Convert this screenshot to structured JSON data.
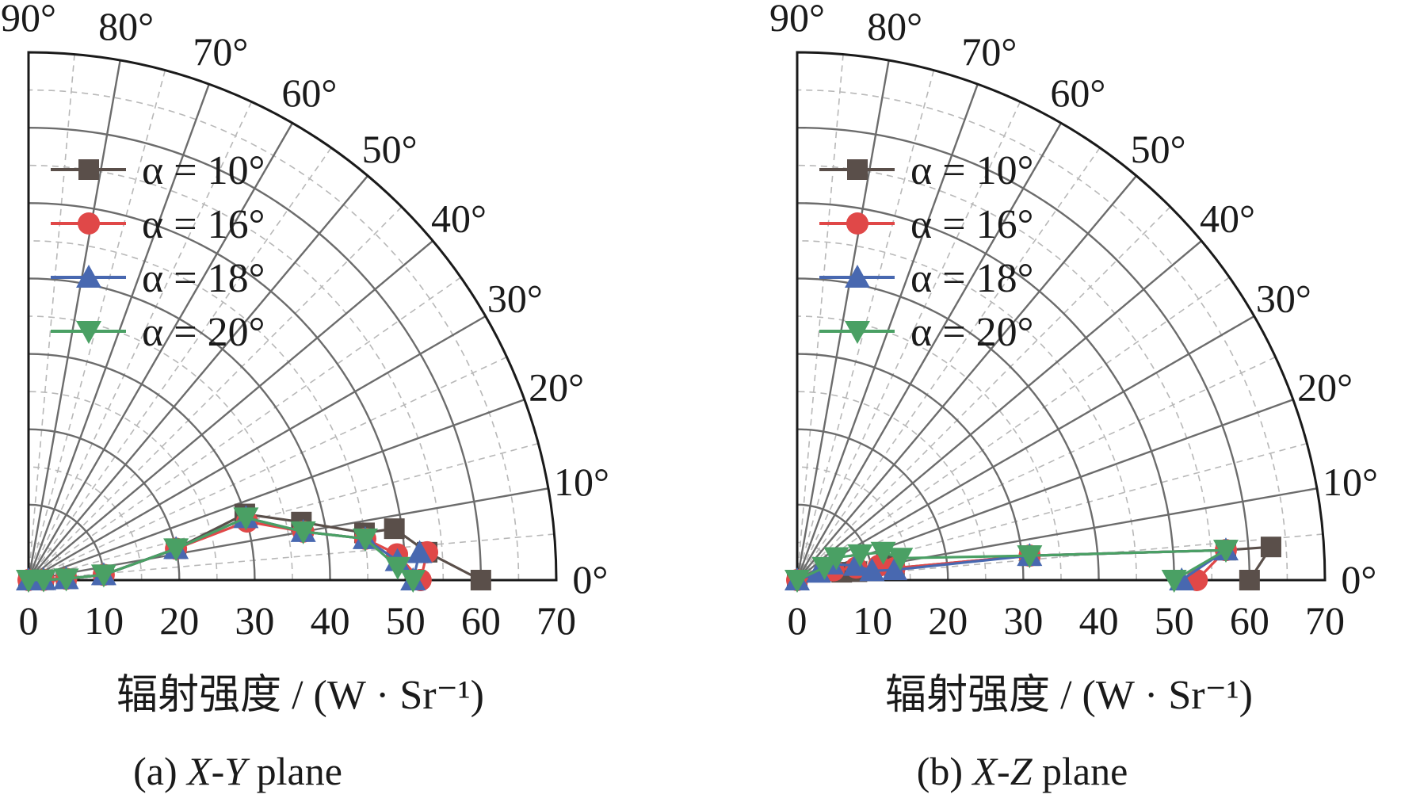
{
  "charts": [
    {
      "caption_prefix": "(a) ",
      "caption_axes": "X-Y",
      "caption_suffix": " plane"
    },
    {
      "caption_prefix": "(b) ",
      "caption_axes": "X-Z",
      "caption_suffix": " plane"
    }
  ],
  "chart_data": [
    {
      "type": "polar-line",
      "title": "(a) X-Y plane",
      "xlabel": "辐射强度 / (W · Sr⁻¹)",
      "radial_ticks": [
        "0",
        "10",
        "20",
        "30",
        "40",
        "50",
        "60",
        "70"
      ],
      "angle_ticks": [
        "0°",
        "10°",
        "20°",
        "30°",
        "40°",
        "50°",
        "60°",
        "70°",
        "80°",
        "90°"
      ],
      "r_range": [
        0,
        70
      ],
      "theta_range_deg": [
        0,
        90
      ],
      "grid": true,
      "legend_position": "top-left",
      "series": [
        {
          "name": "α = 10°",
          "color": "#5a4f4a",
          "marker": "square",
          "points": [
            [
              0,
              0
            ],
            [
              2,
              1
            ],
            [
              5,
              2
            ],
            [
              10,
              4
            ],
            [
              20,
              12
            ],
            [
              30,
              17
            ],
            [
              37,
              12
            ],
            [
              45,
              8
            ],
            [
              49,
              8
            ],
            [
              53,
              4
            ],
            [
              60,
              0
            ]
          ]
        },
        {
          "name": "α = 16°",
          "color": "#e04848",
          "marker": "circle",
          "points": [
            [
              0,
              0
            ],
            [
              2,
              1
            ],
            [
              5,
              2
            ],
            [
              10,
              4
            ],
            [
              20,
              12
            ],
            [
              30,
              15
            ],
            [
              37,
              10
            ],
            [
              45,
              7
            ],
            [
              49,
              4
            ],
            [
              52,
              0
            ],
            [
              53,
              4
            ],
            [
              52,
              0
            ]
          ]
        },
        {
          "name": "α = 18°",
          "color": "#4868b0",
          "marker": "triangle-up",
          "points": [
            [
              0,
              0
            ],
            [
              2,
              1
            ],
            [
              5,
              2
            ],
            [
              10,
              4
            ],
            [
              20,
              12
            ],
            [
              30,
              16
            ],
            [
              37,
              10
            ],
            [
              45,
              7
            ],
            [
              49,
              3
            ],
            [
              51,
              0
            ],
            [
              52,
              4
            ],
            [
              51,
              0
            ]
          ]
        },
        {
          "name": "α = 20°",
          "color": "#4aa064",
          "marker": "triangle-down",
          "points": [
            [
              0,
              0
            ],
            [
              2,
              1
            ],
            [
              5,
              2
            ],
            [
              10,
              4
            ],
            [
              20,
              12
            ],
            [
              30,
              16
            ],
            [
              37,
              10
            ],
            [
              45,
              7
            ],
            [
              49,
              2
            ],
            [
              51,
              0
            ]
          ]
        }
      ]
    },
    {
      "type": "polar-line",
      "title": "(b) X-Z plane",
      "xlabel": "辐射强度 / (W · Sr⁻¹)",
      "radial_ticks": [
        "0",
        "10",
        "20",
        "30",
        "40",
        "50",
        "60",
        "70"
      ],
      "angle_ticks": [
        "0°",
        "10°",
        "20°",
        "30°",
        "40°",
        "50°",
        "60°",
        "70°",
        "80°",
        "90°"
      ],
      "r_range": [
        0,
        70
      ],
      "theta_range_deg": [
        0,
        90
      ],
      "grid": true,
      "legend_position": "top-left",
      "series": [
        {
          "name": "α = 10°",
          "color": "#5a4f4a",
          "marker": "square",
          "points": [
            [
              0,
              0
            ],
            [
              6,
              10
            ],
            [
              8,
              8
            ],
            [
              12,
              10
            ],
            [
              13,
              7
            ],
            [
              31,
              6
            ],
            [
              57,
              4
            ],
            [
              63,
              4
            ],
            [
              60,
              0
            ]
          ]
        },
        {
          "name": "α = 16°",
          "color": "#e04848",
          "marker": "circle",
          "points": [
            [
              0,
              0
            ],
            [
              4,
              20
            ],
            [
              5,
              15
            ],
            [
              8,
              12
            ],
            [
              11,
              10
            ],
            [
              13,
              7
            ],
            [
              31,
              6
            ],
            [
              57,
              4
            ],
            [
              53,
              0
            ]
          ]
        },
        {
          "name": "α = 18°",
          "color": "#4868b0",
          "marker": "triangle-up",
          "points": [
            [
              0,
              0
            ],
            [
              3,
              20
            ],
            [
              5,
              25
            ],
            [
              8,
              14
            ],
            [
              10,
              7
            ],
            [
              13,
              6
            ],
            [
              31,
              6
            ],
            [
              57,
              4
            ],
            [
              51,
              0
            ]
          ]
        },
        {
          "name": "α = 20°",
          "color": "#4aa064",
          "marker": "triangle-down",
          "points": [
            [
              0,
              0
            ],
            [
              4,
              25
            ],
            [
              6,
              30
            ],
            [
              9,
              22
            ],
            [
              12,
              18
            ],
            [
              14,
              12
            ],
            [
              31,
              6
            ],
            [
              57,
              4
            ],
            [
              50,
              0
            ]
          ]
        }
      ]
    }
  ]
}
